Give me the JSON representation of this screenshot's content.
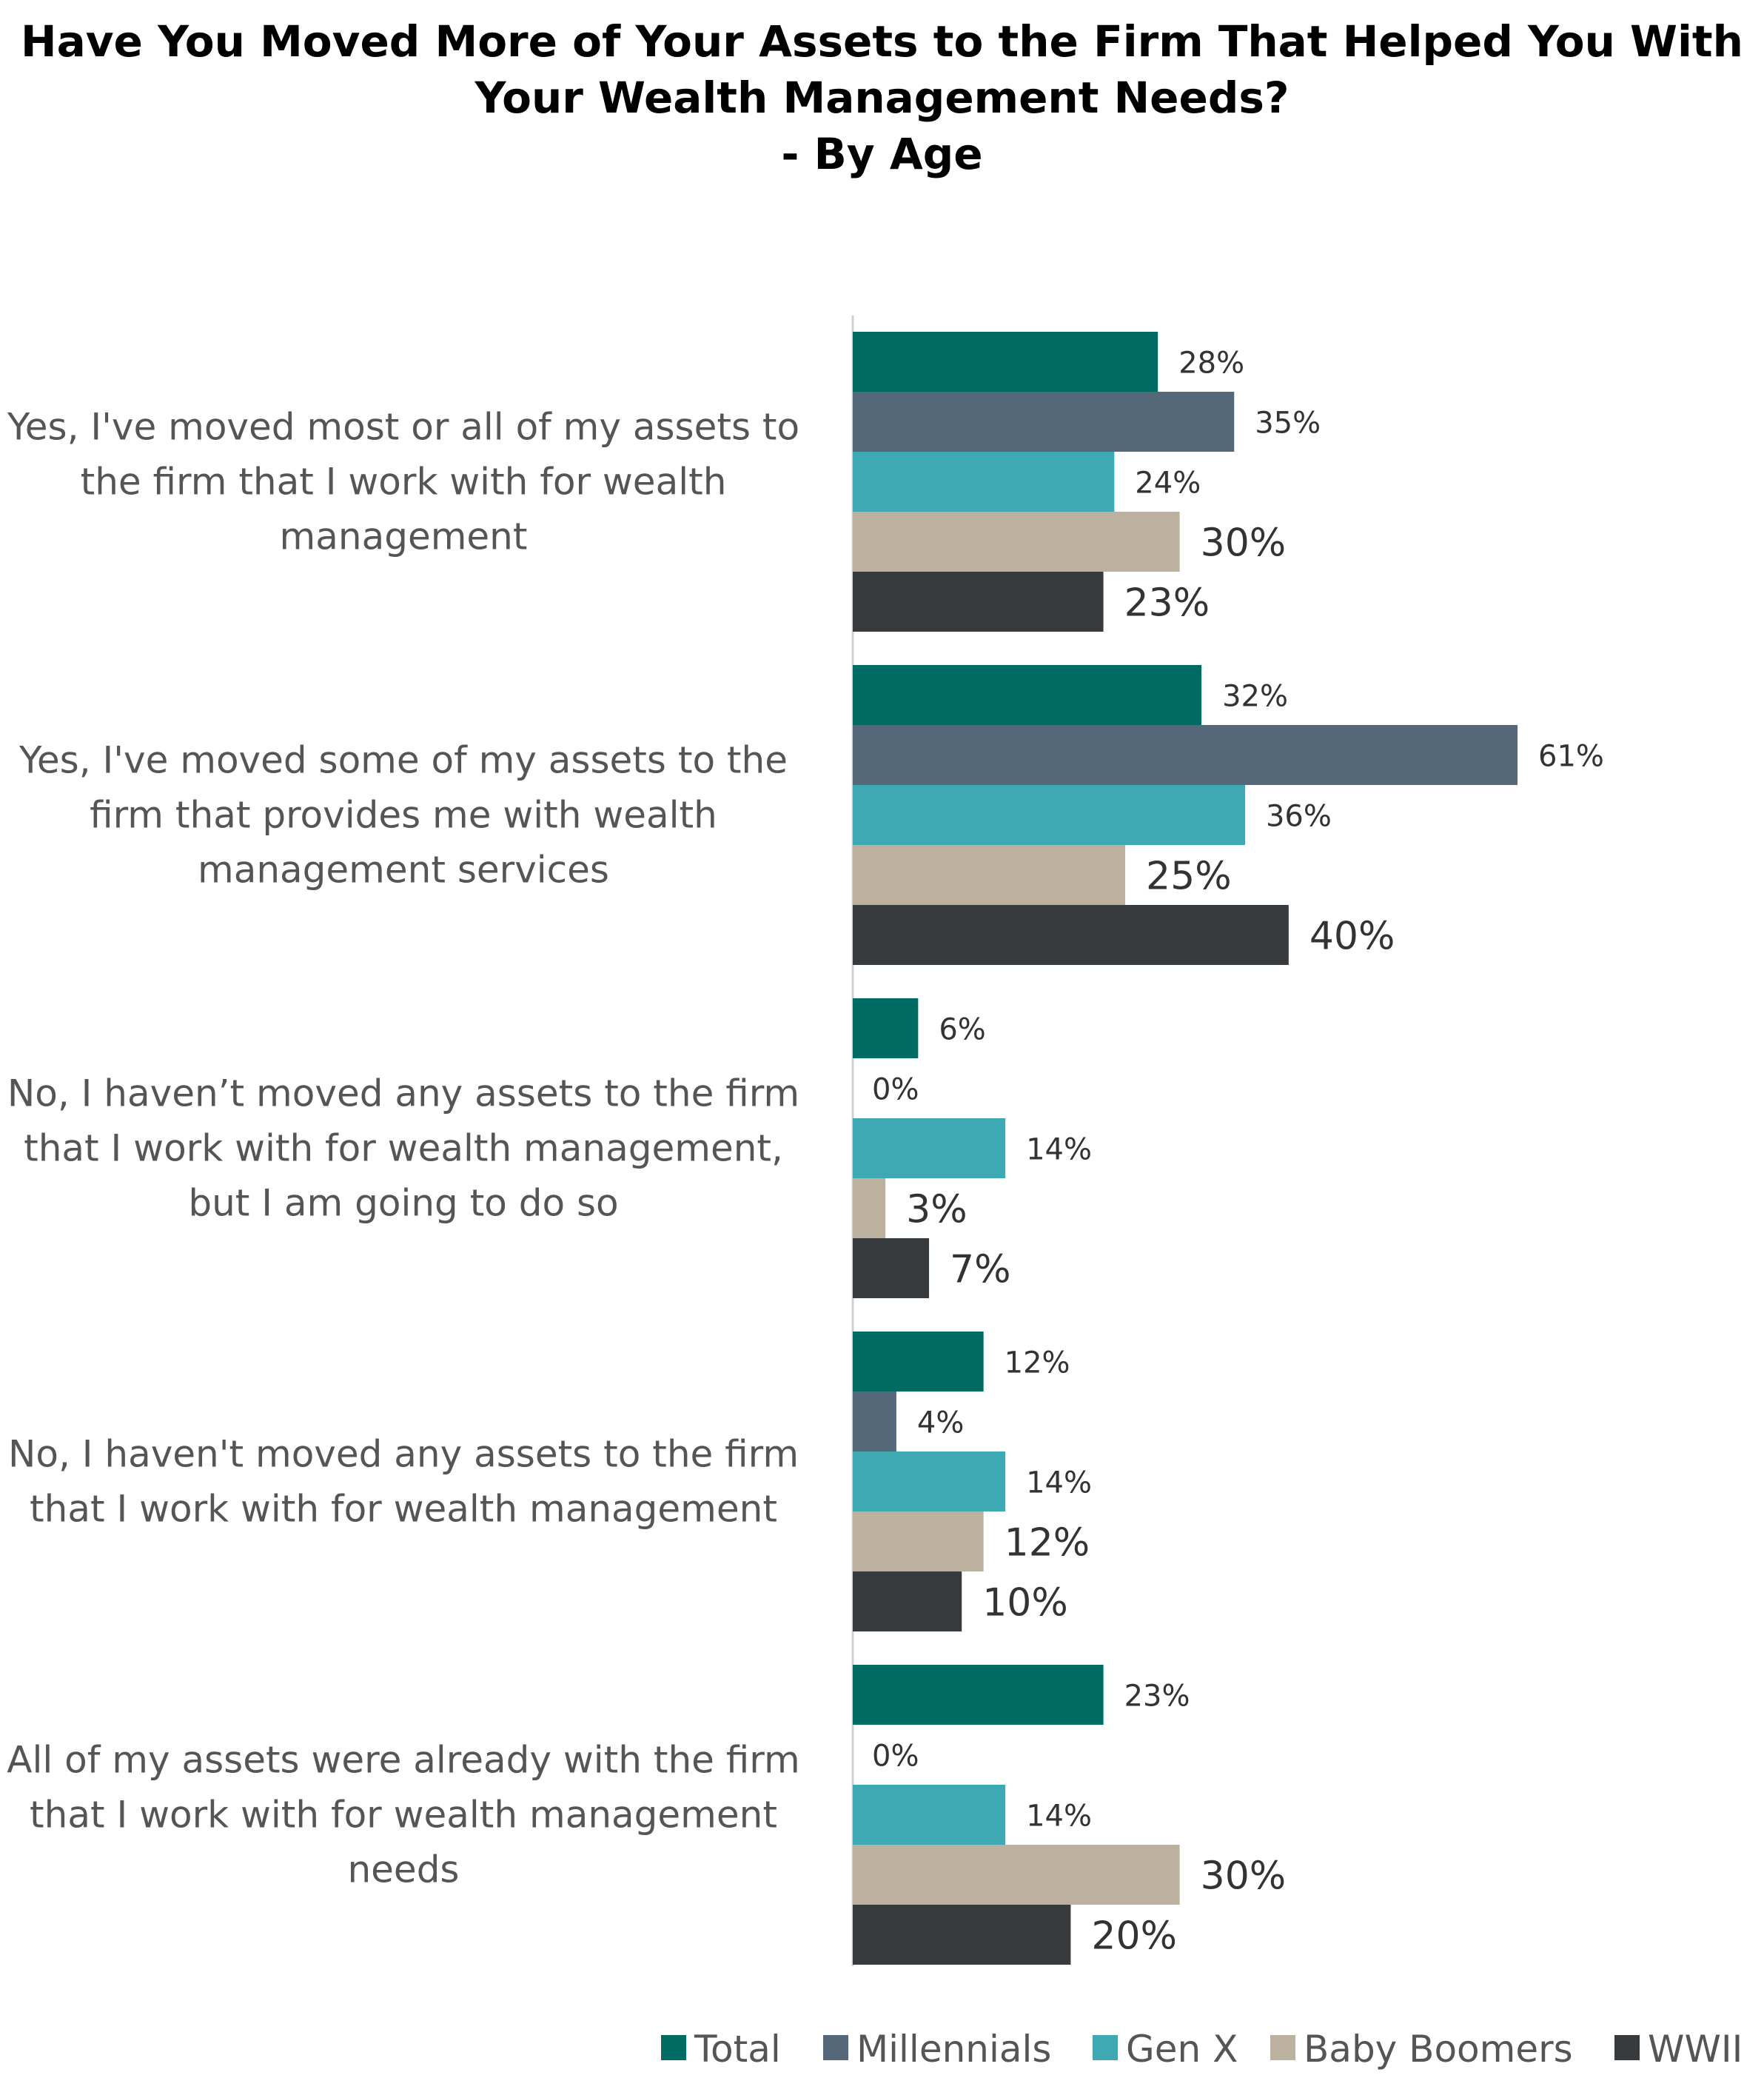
{
  "chart_data": {
    "type": "bar",
    "orientation": "horizontal",
    "title_lines": [
      "Have You Moved More of Your Assets to the Firm That Helped You With",
      "Your Wealth Management Needs?",
      "- By Age"
    ],
    "categories": [
      [
        "Yes, I've moved most or all of my assets to",
        "the firm that I work with for wealth",
        "management"
      ],
      [
        "Yes, I've moved some of my assets to the",
        "firm that provides me with wealth",
        "management services"
      ],
      [
        "No, I haven’t moved any assets to the firm",
        "that I work with for wealth management,",
        "but I am going to do so"
      ],
      [
        "No, I haven't moved any assets to the firm",
        "that I work with for wealth management"
      ],
      [
        "All of my assets were already with the firm",
        "that I work with for wealth management",
        "needs"
      ]
    ],
    "series": [
      {
        "name": "Total",
        "color": "#006b62",
        "values": [
          28,
          32,
          6,
          12,
          23
        ],
        "labels": [
          "28%",
          "32%",
          "6%",
          "12%",
          "23%"
        ]
      },
      {
        "name": "Millennials",
        "color": "#556879",
        "values": [
          35,
          61,
          0,
          4,
          0
        ],
        "labels": [
          "35%",
          "61%",
          "0%",
          "4%",
          "0%"
        ]
      },
      {
        "name": "Gen X",
        "color": "#3fa9b3",
        "values": [
          24,
          36,
          14,
          14,
          14
        ],
        "labels": [
          "24%",
          "36%",
          "14%",
          "14%",
          "14%"
        ]
      },
      {
        "name": "Baby Boomers",
        "color": "#bcb09f",
        "values": [
          30,
          25,
          3,
          12,
          30
        ],
        "labels": [
          "30%",
          "25%",
          "3%",
          "12%",
          "30%"
        ]
      },
      {
        "name": "WWII",
        "color": "#373b3e",
        "values": [
          23,
          40,
          7,
          10,
          20
        ],
        "labels": [
          "23%",
          "40%",
          "7%",
          "10%",
          "20%"
        ]
      }
    ],
    "xlim": [
      0,
      61
    ],
    "grid": false,
    "legend_position": "bottom-right"
  }
}
